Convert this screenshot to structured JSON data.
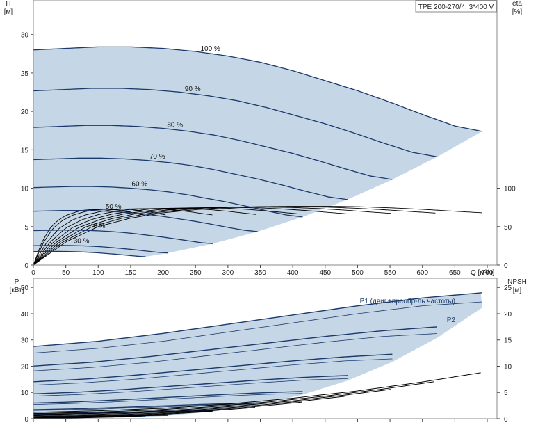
{
  "model_label": "TPE 200-270/4, 3*400 V",
  "colors": {
    "envelope_fill": "#c5d6e6",
    "lowflow_fill": "#e6eff7",
    "curve_dark": "#1b3a6b",
    "curve_black": "#000000"
  },
  "chart_data": [
    {
      "type": "line",
      "name": "head_efficiency",
      "xlabel": "Q [м³/ч]",
      "ylabel_unit": "[м]",
      "ylabel_name": "H",
      "y2label_name": "eta",
      "y2label_unit": "[%]",
      "xlim": [
        0,
        715
      ],
      "ylim": [
        0,
        34.5
      ],
      "y2lim": [
        0,
        100
      ],
      "xticks": [
        0,
        50,
        100,
        150,
        200,
        250,
        300,
        350,
        400,
        450,
        500,
        550,
        600,
        650,
        700
      ],
      "xtick_labels": [
        "0",
        "50",
        "100",
        "150",
        "200",
        "250",
        "300",
        "350",
        "400",
        "450",
        "500",
        "550",
        "600",
        "650",
        "700"
      ],
      "yticks": [
        0,
        5,
        10,
        15,
        20,
        25,
        30
      ],
      "ytick_labels": [
        "0",
        "5",
        "10",
        "15",
        "20",
        "25",
        "30"
      ],
      "y2ticks": [
        0,
        50,
        100
      ],
      "y2tick_labels": [
        "0",
        "50",
        "100"
      ],
      "head_curves": [
        {
          "label": "100 %",
          "speed": 1.0
        },
        {
          "label": "90 %",
          "speed": 0.9
        },
        {
          "label": "80 %",
          "speed": 0.8
        },
        {
          "label": "70 %",
          "speed": 0.7
        },
        {
          "label": "60 %",
          "speed": 0.6
        },
        {
          "label": "50 %",
          "speed": 0.5
        },
        {
          "label": "40 %",
          "speed": 0.4
        },
        {
          "label": "30 %",
          "speed": 0.3
        },
        {
          "label": "",
          "speed": 0.25
        }
      ],
      "head_model": {
        "q_points": [
          0,
          50,
          100,
          150,
          200,
          250,
          300,
          350,
          400,
          450,
          500,
          550,
          600,
          650,
          692
        ],
        "h_points": [
          28.0,
          28.2,
          28.4,
          28.4,
          28.2,
          27.8,
          27.2,
          26.4,
          25.3,
          24.0,
          22.7,
          21.2,
          19.6,
          18.1,
          17.4
        ]
      },
      "efficiency_model": {
        "q_points": [
          0,
          50,
          100,
          150,
          200,
          250,
          300,
          350,
          400,
          450,
          500,
          550,
          600,
          650,
          692
        ],
        "eta_points": [
          0,
          30,
          50,
          61,
          68,
          72,
          75,
          76,
          76.5,
          76.5,
          76,
          74.5,
          72.5,
          70,
          68
        ]
      }
    },
    {
      "type": "line",
      "name": "power_npsh",
      "xlim": [
        0,
        715
      ],
      "ylim": [
        0,
        53.5
      ],
      "y2lim": [
        0,
        26.75
      ],
      "ylabel_name": "P",
      "ylabel_unit": "[кВт]",
      "y2label_name": "NPSH",
      "y2label_unit": "[м]",
      "yticks": [
        0,
        10,
        20,
        30,
        40,
        50
      ],
      "ytick_labels": [
        "0",
        "10",
        "20",
        "30",
        "40",
        "50"
      ],
      "y2ticks": [
        0,
        5,
        10,
        15,
        20,
        25
      ],
      "y2tick_labels": [
        "0",
        "5",
        "10",
        "15",
        "20",
        "25"
      ],
      "p1_label": "P1 (двиг.+преобр-ль частоты)",
      "p2_label": "P2",
      "p1_model": {
        "q_points": [
          0,
          100,
          200,
          300,
          400,
          500,
          600,
          692
        ],
        "p_points": [
          27.5,
          29.5,
          32.5,
          36.0,
          39.5,
          43.0,
          46.0,
          48.0
        ]
      },
      "p2_model": {
        "q_points": [
          0,
          100,
          200,
          300,
          400,
          500,
          600,
          692
        ],
        "p_points": [
          25.0,
          26.8,
          29.5,
          33.0,
          36.5,
          40.0,
          43.0,
          44.5
        ]
      },
      "npsh_model": {
        "q_points": [
          0,
          100,
          200,
          300,
          400,
          500,
          600,
          692
        ],
        "npsh_points": [
          1.2,
          1.5,
          2.0,
          2.8,
          3.9,
          5.3,
          7.0,
          8.8
        ]
      }
    }
  ]
}
